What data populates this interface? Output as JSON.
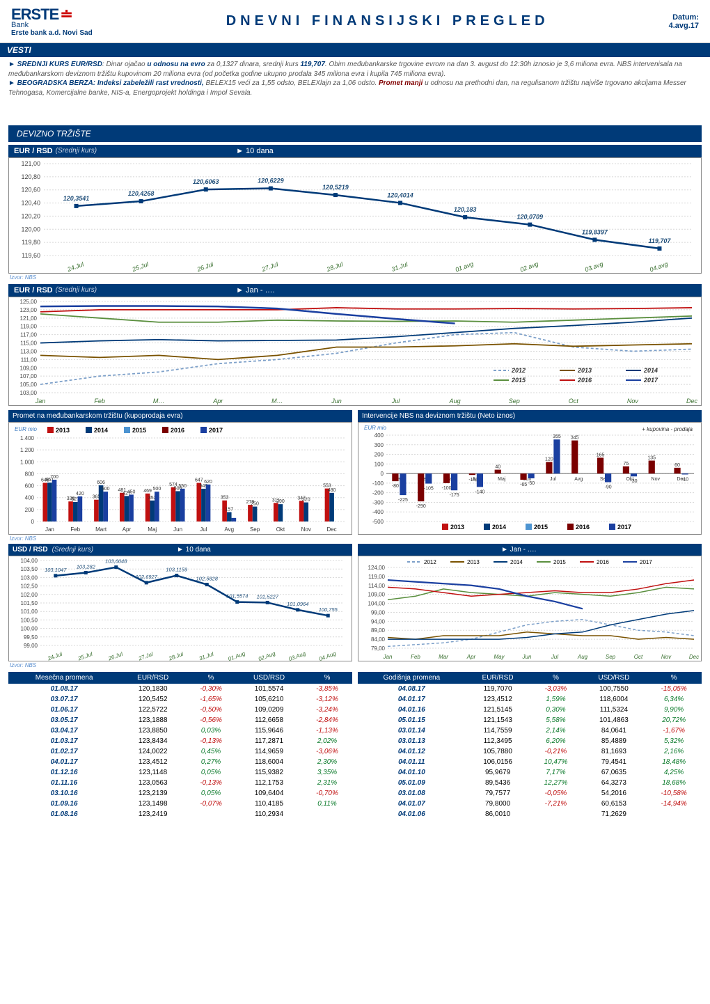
{
  "header": {
    "logo_main": "ERSTE",
    "logo_bank": "Bank",
    "logo_sub": "Erste bank a.d. Novi Sad",
    "title": "DNEVNI FINANSIJSKI PREGLED",
    "date_label": "Datum:",
    "date_value": "4.avg.17"
  },
  "vesti": {
    "banner": "VESTI",
    "line1_a": "► SREDNJI KURS EUR/RSD",
    "line1_b": ": Dinar ojačao ",
    "line1_hl": "u odnosu na evro",
    "line1_c": " za 0,1327 dinara, srednji kurs ",
    "line1_val": "119,707",
    "line1_d": ". Obim međubankarske trgovine evrom na dan 3. avgust do 12:30h iznosio je 3,6 miliona evra. NBS intervenisala na međubankarskom deviznom tržištu kupovinom 20 miliona evra (od početka godine ukupno prodala 345 miliona evra i kupila 745 miliona evra).",
    "line2_a": "► BEOGRADSKA BERZA: Indeksi zabeležili rast vrednosti,",
    "line2_b": " BELEX15 veći za 1,55 odsto, BELEXlajn za 1,06 odsto. ",
    "line2_hl": "Promet manji",
    "line2_c": " u odnosu na prethodni dan, na regulisanom tržištu najviše trgovano akcijama Messer Tehnogasa, Komercijalne banke, NIS-a, Energoprojekt holdinga i Impol Sevala."
  },
  "section_devizno": "DEVIZNO TRŽIŠTE",
  "chart1": {
    "title": "EUR / RSD",
    "subtitle": "(Srednji kurs)",
    "range": "► 10 dana",
    "yticks": [
      "119,60",
      "119,80",
      "120,00",
      "120,20",
      "120,40",
      "120,60",
      "120,80",
      "121,00"
    ],
    "yvals": [
      119.6,
      119.8,
      120.0,
      120.2,
      120.4,
      120.6,
      120.8,
      121.0
    ],
    "xlabels": [
      "24.Jul",
      "25.Jul",
      "26.Jul",
      "27.Jul",
      "28.Jul",
      "31.Jul",
      "01.avg",
      "02.avg",
      "03.avg",
      "04.avg"
    ],
    "data": [
      120.3541,
      120.4268,
      120.6063,
      120.6229,
      120.5219,
      120.4014,
      120.183,
      120.0709,
      119.8397,
      119.707
    ],
    "data_labels": [
      "120,3541",
      "120,4268",
      "120,6063",
      "120,6229",
      "120,5219",
      "120,4014",
      "120,183",
      "120,0709",
      "119,8397",
      "119,707"
    ],
    "line_color": "#003a78",
    "marker_color": "#003a78",
    "bg": "#ffffff",
    "grid": "#d8d8d8"
  },
  "chart2": {
    "title": "EUR / RSD",
    "subtitle": "(Srednji kurs)",
    "range": "► Jan - ….",
    "yticks": [
      "103,00",
      "105,00",
      "107,00",
      "109,00",
      "111,00",
      "113,00",
      "115,00",
      "117,00",
      "119,00",
      "121,00",
      "123,00",
      "125,00"
    ],
    "yvals": [
      103,
      105,
      107,
      109,
      111,
      113,
      115,
      117,
      119,
      121,
      123,
      125
    ],
    "xlabels": [
      "Jan",
      "Feb",
      "M…",
      "Apr",
      "M…",
      "Jun",
      "Jul",
      "Aug",
      "Sep",
      "Oct",
      "Nov",
      "Dec"
    ],
    "legend": [
      {
        "label": "2012",
        "color": "#7da0c9",
        "dash": "4,3"
      },
      {
        "label": "2013",
        "color": "#7a5200",
        "dash": "0"
      },
      {
        "label": "2014",
        "color": "#003a78",
        "dash": "0"
      },
      {
        "label": "2015",
        "color": "#5a8f3e",
        "dash": "0"
      },
      {
        "label": "2016",
        "color": "#c01010",
        "dash": "0"
      },
      {
        "label": "2017",
        "color": "#1a3fa0",
        "dash": "0"
      }
    ],
    "series": {
      "2012": [
        105,
        107,
        108,
        110,
        111,
        112.5,
        115,
        117,
        117.5,
        114,
        113,
        113.5
      ],
      "2013": [
        112,
        111.5,
        112,
        111,
        112,
        114,
        114,
        114.3,
        114.8,
        114.2,
        114.5,
        114.8
      ],
      "2014": [
        115,
        115.5,
        115.8,
        115.5,
        115.6,
        115.7,
        116.5,
        117.5,
        118.5,
        119.2,
        120,
        121
      ],
      "2015": [
        122,
        121,
        120,
        120,
        120.5,
        120.3,
        120.2,
        120.3,
        120,
        120.5,
        121,
        121.5
      ],
      "2016": [
        122.5,
        123,
        123,
        123,
        123,
        123.5,
        123.2,
        123.2,
        123.3,
        123.2,
        123.3,
        123.5
      ],
      "2017": [
        123.8,
        123.9,
        123.9,
        123.8,
        123.3,
        122,
        120.8,
        119.7,
        null,
        null,
        null,
        null
      ]
    }
  },
  "chart3": {
    "title": "Promet na međubankarskom tržištu (kupoprodaja evra)",
    "ylabel": "EUR mio",
    "yticks": [
      "0",
      "200",
      "400",
      "600",
      "800",
      "1.000",
      "1.200",
      "1.400"
    ],
    "yvals": [
      0,
      200,
      400,
      600,
      800,
      1000,
      1200,
      1400
    ],
    "xlabels": [
      "Jan",
      "Feb",
      "Mart",
      "Apr",
      "Maj",
      "Jun",
      "Jul",
      "Avg",
      "Sep",
      "Okt",
      "Nov",
      "Dec"
    ],
    "legend": [
      {
        "label": "2013",
        "color": "#c01010"
      },
      {
        "label": "2014",
        "color": "#003a78"
      },
      {
        "label": "2015",
        "color": "#4d94d1"
      },
      {
        "label": "2016",
        "color": "#7a0000"
      },
      {
        "label": "2017",
        "color": "#1a3fa0"
      }
    ],
    "series": {
      "2013": [
        648,
        336,
        365,
        481,
        469,
        574,
        647,
        353,
        279,
        311,
        347,
        553
      ],
      "2014": [
        651,
        327,
        606,
        427,
        352,
        508,
        549,
        157,
        250,
        290,
        320,
        480
      ],
      "2017": [
        700,
        420,
        500,
        450,
        500,
        550,
        620,
        60,
        0,
        0,
        0,
        0
      ]
    }
  },
  "chart4": {
    "title": "Intervencije NBS na deviznom tržištu (Neto iznos)",
    "ylabel": "EUR mio",
    "kup_label": "+ kupovina  - prodaja",
    "yticks": [
      "-500",
      "-400",
      "-300",
      "-200",
      "-100",
      "0",
      "100",
      "200",
      "300",
      "400"
    ],
    "yvals": [
      -500,
      -400,
      -300,
      -200,
      -100,
      0,
      100,
      200,
      300,
      400
    ],
    "xlabels": [
      "Jan",
      "Feb",
      "Mart",
      "Apr",
      "Maj",
      "Jun",
      "Jul",
      "Avg",
      "Sep",
      "Okt",
      "Nov",
      "Dec"
    ],
    "legend": [
      {
        "label": "2013",
        "color": "#c01010"
      },
      {
        "label": "2014",
        "color": "#003a78"
      },
      {
        "label": "2015",
        "color": "#4d94d1"
      },
      {
        "label": "2016",
        "color": "#7a0000"
      },
      {
        "label": "2017",
        "color": "#1a3fa0"
      }
    ],
    "bars_2016": [
      -80,
      -290,
      -100,
      -15,
      40,
      -65,
      120,
      345,
      165,
      75,
      135,
      60
    ],
    "bars_2017": [
      -225,
      -105,
      -175,
      -140,
      0,
      -50,
      355,
      0,
      -90,
      -30,
      0,
      -10
    ]
  },
  "chart5": {
    "title": "USD / RSD",
    "subtitle": "(Srednji kurs)",
    "range": "► 10 dana",
    "yticks": [
      "99,00",
      "99,50",
      "100,00",
      "100,50",
      "101,00",
      "101,50",
      "102,00",
      "102,50",
      "103,00",
      "103,50",
      "104,00"
    ],
    "yvals": [
      99,
      99.5,
      100,
      100.5,
      101,
      101.5,
      102,
      102.5,
      103,
      103.5,
      104
    ],
    "xlabels": [
      "24.Jul",
      "25.Jul",
      "26.Jul",
      "27.Jul",
      "28.Jul",
      "31.Jul",
      "01.Aug",
      "02.Aug",
      "03.Aug",
      "04.Aug"
    ],
    "data": [
      103.1047,
      103.282,
      103.6048,
      102.6927,
      103.1159,
      102.5828,
      101.5574,
      101.5227,
      101.0964,
      100.755
    ],
    "data_labels": [
      "103,1047",
      "103,282",
      "103,6048",
      "102,6927",
      "103,1159",
      "102,5828",
      "101,5574",
      "101,5227",
      "101,0964",
      "100,755"
    ],
    "line_color": "#003a78"
  },
  "chart6": {
    "range": "► Jan - ….",
    "yticks": [
      "79,00",
      "84,00",
      "89,00",
      "94,00",
      "99,00",
      "104,00",
      "109,00",
      "114,00",
      "119,00",
      "124,00"
    ],
    "yvals": [
      79,
      84,
      89,
      94,
      99,
      104,
      109,
      114,
      119,
      124
    ],
    "xlabels": [
      "Jan",
      "Feb",
      "Mar",
      "Apr",
      "May",
      "Jun",
      "Jul",
      "Aug",
      "Sep",
      "Oct",
      "Nov",
      "Dec"
    ],
    "legend": [
      {
        "label": "2012",
        "color": "#7da0c9",
        "dash": "4,3"
      },
      {
        "label": "2013",
        "color": "#7a5200",
        "dash": "0"
      },
      {
        "label": "2014",
        "color": "#003a78",
        "dash": "0"
      },
      {
        "label": "2015",
        "color": "#5a8f3e",
        "dash": "0"
      },
      {
        "label": "2016",
        "color": "#c01010",
        "dash": "0"
      },
      {
        "label": "2017",
        "color": "#1a3fa0",
        "dash": "0"
      }
    ],
    "series": {
      "2012": [
        80,
        81,
        82,
        84,
        88,
        92,
        94,
        95,
        92,
        89,
        88,
        86
      ],
      "2013": [
        85,
        84,
        86,
        86,
        86,
        88,
        87,
        86,
        86,
        84,
        85,
        84
      ],
      "2014": [
        84,
        84,
        84,
        84,
        84,
        85,
        87,
        88,
        92,
        95,
        98,
        100
      ],
      "2015": [
        106,
        108,
        112,
        110,
        109,
        108,
        110,
        109,
        108,
        110,
        113,
        112
      ],
      "2016": [
        113,
        112,
        110,
        108,
        109,
        110,
        111,
        110,
        110,
        112,
        115,
        117
      ],
      "2017": [
        117,
        116,
        115,
        114,
        112,
        108,
        105,
        101,
        null,
        null,
        null,
        null
      ]
    }
  },
  "table_left": {
    "columns": [
      "Mesečna promena",
      "EUR/RSD",
      "%",
      "USD/RSD",
      "%"
    ],
    "rows": [
      [
        "01.08.17",
        "120,1830",
        "-0,30%",
        "101,5574",
        "-3,85%"
      ],
      [
        "03.07.17",
        "120,5452",
        "-1,65%",
        "105,6210",
        "-3,12%"
      ],
      [
        "01.06.17",
        "122,5722",
        "-0,50%",
        "109,0209",
        "-3,24%"
      ],
      [
        "03.05.17",
        "123,1888",
        "-0,56%",
        "112,6658",
        "-2,84%"
      ],
      [
        "03.04.17",
        "123,8850",
        "0,03%",
        "115,9646",
        "-1,13%"
      ],
      [
        "01.03.17",
        "123,8434",
        "-0,13%",
        "117,2871",
        "2,02%"
      ],
      [
        "01.02.17",
        "124,0022",
        "0,45%",
        "114,9659",
        "-3,06%"
      ],
      [
        "04.01.17",
        "123,4512",
        "0,27%",
        "118,6004",
        "2,30%"
      ],
      [
        "01.12.16",
        "123,1148",
        "0,05%",
        "115,9382",
        "3,35%"
      ],
      [
        "01.11.16",
        "123,0563",
        "-0,13%",
        "112,1753",
        "2,31%"
      ],
      [
        "03.10.16",
        "123,2139",
        "0,05%",
        "109,6404",
        "-0,70%"
      ],
      [
        "01.09.16",
        "123,1498",
        "-0,07%",
        "110,4185",
        "0,11%"
      ],
      [
        "01.08.16",
        "123,2419",
        "",
        "110,2934",
        ""
      ]
    ]
  },
  "table_right": {
    "columns": [
      "Godišnja promena",
      "EUR/RSD",
      "%",
      "USD/RSD",
      "%"
    ],
    "rows": [
      [
        "04.08.17",
        "119,7070",
        "-3,03%",
        "100,7550",
        "-15,05%"
      ],
      [
        "04.01.17",
        "123,4512",
        "1,59%",
        "118,6004",
        "6,34%"
      ],
      [
        "04.01.16",
        "121,5145",
        "0,30%",
        "111,5324",
        "9,90%"
      ],
      [
        "05.01.15",
        "121,1543",
        "5,58%",
        "101,4863",
        "20,72%"
      ],
      [
        "03.01.14",
        "114,7559",
        "2,14%",
        "84,0641",
        "-1,67%"
      ],
      [
        "03.01.13",
        "112,3495",
        "6,20%",
        "85,4889",
        "5,32%"
      ],
      [
        "04.01.12",
        "105,7880",
        "-0,21%",
        "81,1693",
        "2,16%"
      ],
      [
        "04.01.11",
        "106,0156",
        "10,47%",
        "79,4541",
        "18,48%"
      ],
      [
        "04.01.10",
        "95,9679",
        "7,17%",
        "67,0635",
        "4,25%"
      ],
      [
        "05.01.09",
        "89,5436",
        "12,27%",
        "64,3273",
        "18,68%"
      ],
      [
        "03.01.08",
        "79,7577",
        "-0,05%",
        "54,2016",
        "-10,58%"
      ],
      [
        "04.01.07",
        "79,8000",
        "-7,21%",
        "60,6153",
        "-14,94%"
      ],
      [
        "04.01.06",
        "86,0010",
        "",
        "71,2629",
        ""
      ]
    ]
  },
  "src_label": "Izvor: NBS"
}
